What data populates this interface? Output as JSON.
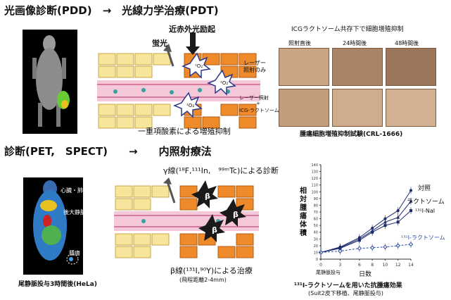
{
  "top": {
    "title": "光画像診断(PDD)　→　光線力学治療(PDT)",
    "nir_label": "近赤外光励起",
    "fluor_label": "蛍光",
    "o2_label": "¹O₂",
    "singlet_label": "一重項酸素による増殖抑制"
  },
  "invitro": {
    "title": "ICGラクトソーム共存下で細胞増殖抑制",
    "col_headers": [
      "照射直後",
      "24時間後",
      "48時間後"
    ],
    "row1_label_a": "レーザー",
    "row1_label_b": "照射のみ",
    "row2_label_a": "レーザー照射",
    "row2_label_b": "+",
    "row2_label_c": "ICG-ラクトソーム",
    "caption": "腫瘍細胞増殖抑制試験(CRL-1666)"
  },
  "bottom": {
    "title": "診断(PET,　SPECT)　　→　　内照射療法",
    "gamma_label": "γ線(¹⁸F,¹¹¹In,　⁹⁹ᵐTc)による診断",
    "beta_mark": "β",
    "beta_label": "β線(¹³¹I,⁹⁰Y)による治療",
    "range_label": "(飛程距離2-4mm)",
    "pet_heart": "心臓・肺",
    "pet_vena": "後大静脈",
    "pet_tumor": "腫瘍",
    "pet_caption": "尾静脈投与3時間後(HeLa)"
  },
  "chart_data": {
    "type": "line",
    "ylabel": "相対腫瘍体積",
    "xlabel": "日数",
    "x_note": "尾静脈投与",
    "x": [
      0,
      3,
      6,
      8,
      10,
      12,
      14
    ],
    "xticks": [
      "0",
      "3",
      "6",
      "8",
      "10",
      "12",
      "14"
    ],
    "ylim": [
      0,
      140
    ],
    "yticks": [
      0,
      10,
      20,
      30,
      40,
      50,
      60,
      70,
      80,
      90,
      100,
      110,
      120,
      130,
      140
    ],
    "series": [
      {
        "name": "対照",
        "values": [
          10,
          18,
          32,
          46,
          60,
          72,
          102
        ],
        "color": "#1a2a6c"
      },
      {
        "name": "ラクトソーム",
        "values": [
          10,
          17,
          30,
          42,
          55,
          62,
          86
        ],
        "color": "#1a2a6c"
      },
      {
        "name": "¹³¹I-NaI",
        "values": [
          10,
          16,
          28,
          40,
          50,
          55,
          72
        ],
        "color": "#1a2a6c"
      },
      {
        "name": "¹³¹I-ラクトソーム",
        "values": [
          10,
          12,
          16,
          17,
          18,
          20,
          22
        ],
        "color": "#2b4aa0"
      }
    ],
    "caption": "¹³¹I-ラクトソームを用いた抗腫瘍効果",
    "subcaption": "(Suit2皮下移植、尾静脈投与)"
  }
}
